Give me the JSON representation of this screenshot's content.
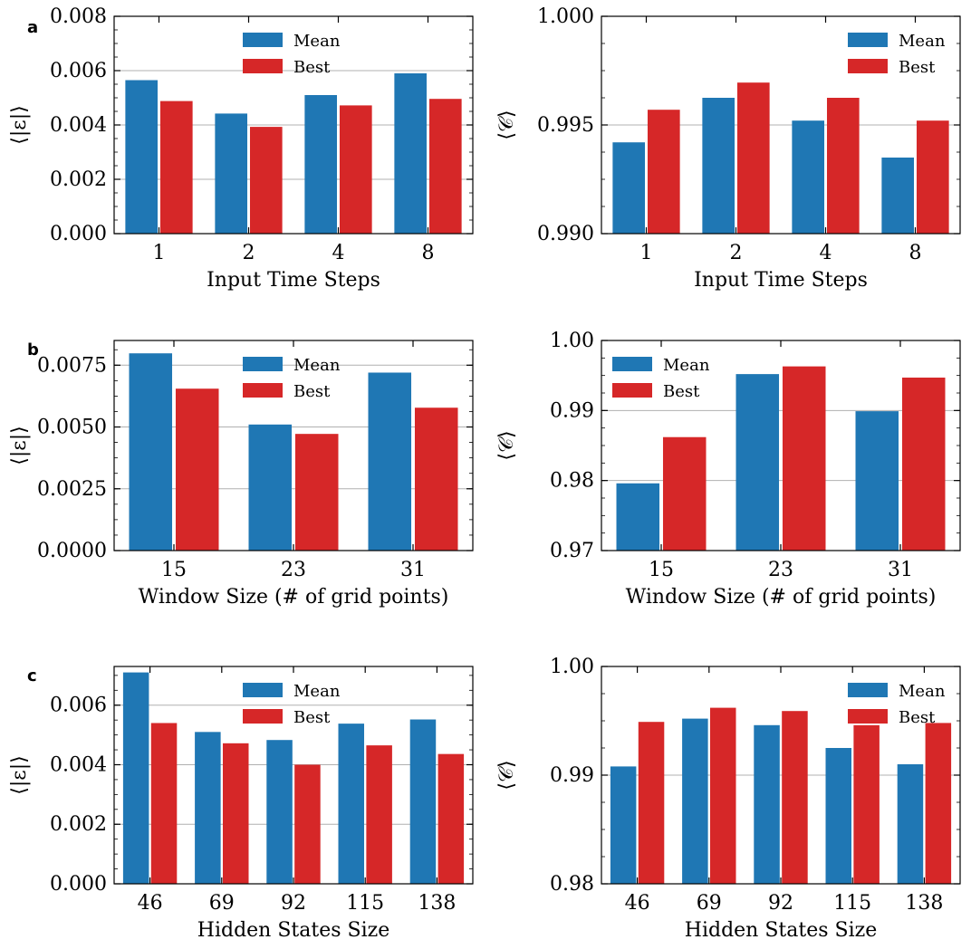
{
  "colors": {
    "mean": "#1f77b4",
    "best": "#d62728",
    "grid": "#b0b0b0"
  },
  "panels": [
    {
      "letter": "a",
      "charts": [
        {
          "type": "bar",
          "metric": "error",
          "ylabel": "⟨|ε|⟩",
          "xlabel": "Input Time Steps",
          "categories": [
            "1",
            "2",
            "4",
            "8"
          ],
          "series": [
            {
              "name": "Mean",
              "values": [
                0.00565,
                0.00442,
                0.0051,
                0.0059
              ]
            },
            {
              "name": "Best",
              "values": [
                0.00488,
                0.00393,
                0.00472,
                0.00496
              ]
            }
          ],
          "ylim": [
            0,
            0.008
          ],
          "yticks": [
            "0.000",
            "0.002",
            "0.004",
            "0.006",
            "0.008"
          ],
          "grid": true,
          "legend": "top-center"
        },
        {
          "type": "bar",
          "metric": "coefficient",
          "ylabel": "⟨𝒞⟩",
          "xlabel": "Input Time Steps",
          "categories": [
            "1",
            "2",
            "4",
            "8"
          ],
          "series": [
            {
              "name": "Mean",
              "values": [
                0.9942,
                0.99625,
                0.9952,
                0.9935
              ]
            },
            {
              "name": "Best",
              "values": [
                0.9957,
                0.99695,
                0.99625,
                0.9952
              ]
            }
          ],
          "ylim": [
            0.99,
            1.0
          ],
          "yticks": [
            "0.990",
            "0.995",
            "1.000"
          ],
          "grid": true,
          "legend": "top-right"
        }
      ]
    },
    {
      "letter": "b",
      "charts": [
        {
          "type": "bar",
          "metric": "error",
          "ylabel": "⟨|ε|⟩",
          "xlabel": "Window Size (# of grid points)",
          "categories": [
            "15",
            "23",
            "31"
          ],
          "series": [
            {
              "name": "Mean",
              "values": [
                0.00798,
                0.0051,
                0.0072
              ]
            },
            {
              "name": "Best",
              "values": [
                0.00655,
                0.00472,
                0.00578
              ]
            }
          ],
          "ylim": [
            0,
            0.0085
          ],
          "yticks": [
            "0.0000",
            "0.0025",
            "0.0050",
            "0.0075"
          ],
          "ytick_values": [
            0,
            0.0025,
            0.005,
            0.0075
          ],
          "grid": true,
          "legend": "top-center"
        },
        {
          "type": "bar",
          "metric": "coefficient",
          "ylabel": "⟨𝒞⟩",
          "xlabel": "Window Size (# of grid points)",
          "categories": [
            "15",
            "23",
            "31"
          ],
          "series": [
            {
              "name": "Mean",
              "values": [
                0.9796,
                0.9952,
                0.9899
              ]
            },
            {
              "name": "Best",
              "values": [
                0.9862,
                0.9963,
                0.9947
              ]
            }
          ],
          "ylim": [
            0.97,
            1.0
          ],
          "yticks": [
            "0.97",
            "0.98",
            "0.99",
            "1.00"
          ],
          "grid": true,
          "legend": "top-left"
        }
      ]
    },
    {
      "letter": "c",
      "charts": [
        {
          "type": "bar",
          "metric": "error",
          "ylabel": "⟨|ε|⟩",
          "xlabel": "Hidden States Size",
          "categories": [
            "46",
            "69",
            "92",
            "115",
            "138"
          ],
          "series": [
            {
              "name": "Mean",
              "values": [
                0.0071,
                0.0051,
                0.00483,
                0.00538,
                0.00552
              ]
            },
            {
              "name": "Best",
              "values": [
                0.0054,
                0.00472,
                0.004,
                0.00465,
                0.00436
              ]
            }
          ],
          "ylim": [
            0,
            0.0073
          ],
          "yticks": [
            "0.000",
            "0.002",
            "0.004",
            "0.006"
          ],
          "ytick_values": [
            0,
            0.002,
            0.004,
            0.006
          ],
          "grid": true,
          "legend": "top-center"
        },
        {
          "type": "bar",
          "metric": "coefficient",
          "ylabel": "⟨𝒞⟩",
          "xlabel": "Hidden States Size",
          "categories": [
            "46",
            "69",
            "92",
            "115",
            "138"
          ],
          "series": [
            {
              "name": "Mean",
              "values": [
                0.9908,
                0.9952,
                0.9946,
                0.9925,
                0.991
              ]
            },
            {
              "name": "Best",
              "values": [
                0.9949,
                0.9962,
                0.9959,
                0.9946,
                0.9948
              ]
            }
          ],
          "ylim": [
            0.98,
            1.0
          ],
          "yticks": [
            "0.98",
            "0.99",
            "1.00"
          ],
          "grid": true,
          "legend": "top-right"
        }
      ]
    }
  ]
}
